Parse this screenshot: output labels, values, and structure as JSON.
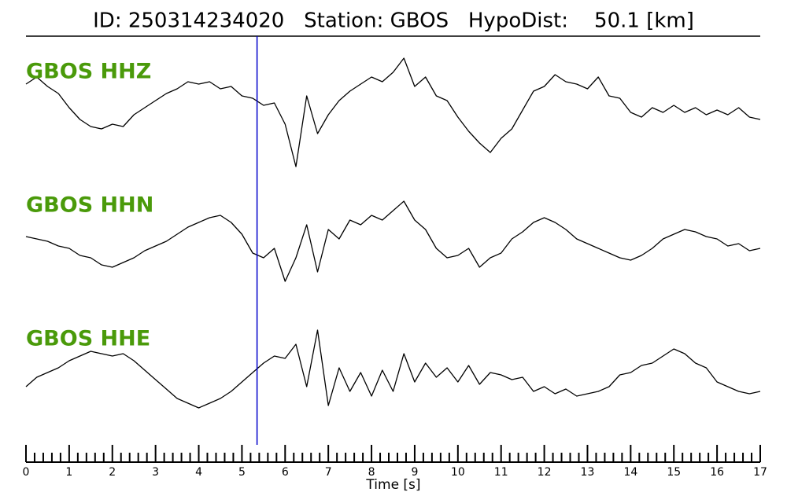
{
  "chart_data": {
    "type": "seismogram",
    "title": "ID: 250314234020   Station: GBOS   HypoDist:    50.1 [km]",
    "xlabel": "Time [s]",
    "xlim": [
      0,
      17
    ],
    "xticks": [
      0,
      1,
      2,
      3,
      4,
      5,
      6,
      7,
      8,
      9,
      10,
      11,
      12,
      13,
      14,
      15,
      16,
      17
    ],
    "xminorticks": [
      0.2,
      0.4,
      0.6,
      0.8,
      1.2,
      1.4,
      1.6,
      1.8,
      2.2,
      2.4,
      2.6,
      2.8,
      3.2,
      3.4,
      3.6,
      3.8,
      4.2,
      4.4,
      4.6,
      4.8,
      5.2,
      5.4,
      5.6,
      5.8,
      6.2,
      6.4,
      6.6,
      6.8,
      7.2,
      7.4,
      7.6,
      7.8,
      8.2,
      8.4,
      8.6,
      8.8,
      9.2,
      9.4,
      9.6,
      9.8,
      10.2,
      10.4,
      10.6,
      10.8,
      11.2,
      11.4,
      11.6,
      11.8,
      12.2,
      12.4,
      12.6,
      12.8,
      13.2,
      13.4,
      13.6,
      13.8,
      14.2,
      14.4,
      14.6,
      14.8,
      15.2,
      15.4,
      15.6,
      15.8,
      16.2,
      16.4,
      16.6,
      16.8
    ],
    "ylim": [
      -1.5,
      1.5
    ],
    "pick_time": 5.35,
    "pick_color": "#0000cc",
    "label_color": "#4a9a0a",
    "x": [
      0,
      0.25,
      0.5,
      0.75,
      1,
      1.25,
      1.5,
      1.75,
      2,
      2.25,
      2.5,
      2.75,
      3,
      3.25,
      3.5,
      3.75,
      4,
      4.25,
      4.5,
      4.75,
      5,
      5.25,
      5.5,
      5.75,
      6,
      6.25,
      6.5,
      6.75,
      7,
      7.25,
      7.5,
      7.75,
      8,
      8.25,
      8.5,
      8.75,
      9,
      9.25,
      9.5,
      9.75,
      10,
      10.25,
      10.5,
      10.75,
      11,
      11.25,
      11.5,
      11.75,
      12,
      12.25,
      12.5,
      12.75,
      13,
      13.25,
      13.5,
      13.75,
      14,
      14.25,
      14.5,
      14.75,
      15,
      15.25,
      15.5,
      15.75,
      16,
      16.25,
      16.5,
      16.75,
      17
    ],
    "series": [
      {
        "name": "GBOS HHZ",
        "color": "#000000",
        "values": [
          0.55,
          0.7,
          0.5,
          0.35,
          0.05,
          -0.2,
          -0.35,
          -0.4,
          -0.3,
          -0.35,
          -0.1,
          0.05,
          0.2,
          0.35,
          0.45,
          0.6,
          0.55,
          0.6,
          0.45,
          0.5,
          0.3,
          0.25,
          0.1,
          0.15,
          -0.3,
          -1.2,
          0.3,
          -0.5,
          -0.1,
          0.2,
          0.4,
          0.55,
          0.7,
          0.6,
          0.8,
          1.1,
          0.5,
          0.7,
          0.3,
          0.2,
          -0.15,
          -0.45,
          -0.7,
          -0.9,
          -0.6,
          -0.4,
          0,
          0.4,
          0.5,
          0.75,
          0.6,
          0.55,
          0.45,
          0.7,
          0.3,
          0.25,
          -0.05,
          -0.15,
          0.05,
          -0.05,
          0.1,
          -0.05,
          0.05,
          -0.1,
          0,
          -0.1,
          0.05,
          -0.15,
          -0.2
        ]
      },
      {
        "name": "GBOS HHN",
        "color": "#000000",
        "values": [
          0.15,
          0.1,
          0.05,
          -0.05,
          -0.1,
          -0.25,
          -0.3,
          -0.45,
          -0.5,
          -0.4,
          -0.3,
          -0.15,
          -0.05,
          0.05,
          0.2,
          0.35,
          0.45,
          0.55,
          0.6,
          0.45,
          0.2,
          -0.2,
          -0.3,
          -0.1,
          -0.8,
          -0.3,
          0.4,
          -0.6,
          0.3,
          0.1,
          0.5,
          0.4,
          0.6,
          0.5,
          0.7,
          0.9,
          0.5,
          0.3,
          -0.1,
          -0.3,
          -0.25,
          -0.1,
          -0.5,
          -0.3,
          -0.2,
          0.1,
          0.25,
          0.45,
          0.55,
          0.45,
          0.3,
          0.1,
          0,
          -0.1,
          -0.2,
          -0.3,
          -0.35,
          -0.25,
          -0.1,
          0.1,
          0.2,
          0.3,
          0.25,
          0.15,
          0.1,
          -0.05,
          0,
          -0.15,
          -0.1
        ]
      },
      {
        "name": "GBOS HHE",
        "color": "#000000",
        "values": [
          -0.2,
          0,
          0.1,
          0.2,
          0.35,
          0.45,
          0.55,
          0.5,
          0.45,
          0.5,
          0.35,
          0.15,
          -0.05,
          -0.25,
          -0.45,
          -0.55,
          -0.65,
          -0.55,
          -0.45,
          -0.3,
          -0.1,
          0.1,
          0.3,
          0.45,
          0.4,
          0.7,
          -0.2,
          1.0,
          -0.6,
          0.2,
          -0.3,
          0.1,
          -0.4,
          0.15,
          -0.3,
          0.5,
          -0.1,
          0.3,
          0,
          0.2,
          -0.1,
          0.25,
          -0.15,
          0.1,
          0.05,
          -0.05,
          0,
          -0.3,
          -0.2,
          -0.35,
          -0.25,
          -0.4,
          -0.35,
          -0.3,
          -0.2,
          0.05,
          0.1,
          0.25,
          0.3,
          0.45,
          0.6,
          0.5,
          0.3,
          0.2,
          -0.1,
          -0.2,
          -0.3,
          -0.35,
          -0.3
        ]
      }
    ]
  }
}
